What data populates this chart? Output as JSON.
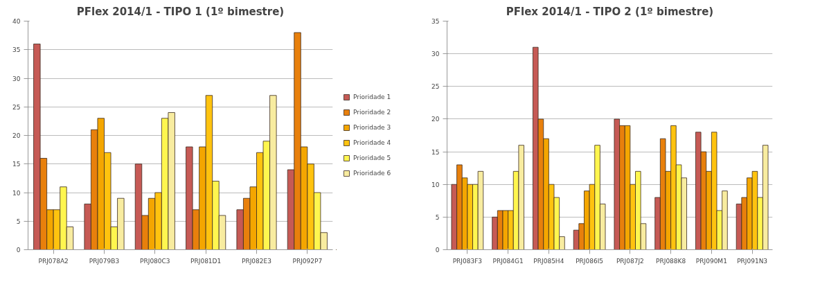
{
  "chart_data": [
    {
      "type": "bar",
      "title": "PFlex 2014/1 - TIPO 1 (1º bimestre)",
      "categories": [
        "PRJ078A2",
        "PRJ079B3",
        "PRJ080C3",
        "PRJ081D1",
        "PRJ082E3",
        "PRJ092P7"
      ],
      "ylim": [
        0,
        40
      ],
      "yticks": [
        0,
        5,
        10,
        15,
        20,
        25,
        30,
        35,
        40
      ],
      "grid": "y",
      "legend": "right",
      "series": [
        {
          "name": "Prioridade 1",
          "color": "#c65a55",
          "values": [
            36,
            8,
            15,
            18,
            7,
            14
          ]
        },
        {
          "name": "Prioridade 2",
          "color": "#e8800c",
          "values": [
            16,
            21,
            6,
            7,
            9,
            38
          ]
        },
        {
          "name": "Prioridade 3",
          "color": "#f4a600",
          "values": [
            7,
            23,
            9,
            18,
            11,
            18
          ]
        },
        {
          "name": "Prioridade 4",
          "color": "#ffc30f",
          "values": [
            7,
            17,
            10,
            27,
            17,
            15
          ]
        },
        {
          "name": "Prioridade 5",
          "color": "#fff64f",
          "values": [
            11,
            4,
            23,
            12,
            19,
            10
          ]
        },
        {
          "name": "Prioridade 6",
          "color": "#f8eca0",
          "values": [
            4,
            9,
            24,
            6,
            27,
            3
          ]
        }
      ]
    },
    {
      "type": "bar",
      "title": "PFlex 2014/1 - TIPO 2 (1º bimestre)",
      "categories": [
        "PRJ083F3",
        "PRJ084G1",
        "PRJ085H4",
        "PRJ086I5",
        "PRJ087J2",
        "PRJ088K8",
        "PRJ090M1",
        "PRJ091N3"
      ],
      "ylim": [
        0,
        35
      ],
      "yticks": [
        0,
        5,
        10,
        15,
        20,
        25,
        30,
        35
      ],
      "grid": "y",
      "series": [
        {
          "color": "#c65a55",
          "values": [
            10,
            5,
            31,
            3,
            20,
            8,
            18,
            7
          ]
        },
        {
          "color": "#e8800c",
          "values": [
            13,
            6,
            20,
            4,
            19,
            17,
            15,
            8
          ]
        },
        {
          "color": "#f4a600",
          "values": [
            11,
            6,
            17,
            9,
            19,
            12,
            12,
            11
          ]
        },
        {
          "color": "#ffc30f",
          "values": [
            10,
            6,
            10,
            10,
            10,
            19,
            18,
            12
          ]
        },
        {
          "color": "#fff64f",
          "values": [
            10,
            12,
            8,
            16,
            12,
            13,
            6,
            8
          ]
        },
        {
          "color": "#f8eca0",
          "values": [
            12,
            16,
            2,
            7,
            4,
            11,
            9,
            16
          ]
        }
      ]
    }
  ]
}
